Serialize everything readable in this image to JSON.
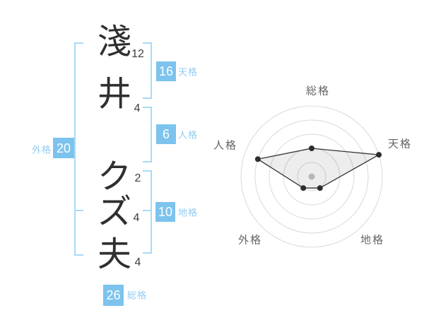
{
  "name_diagram": {
    "characters": [
      {
        "char": "淺",
        "strokes": "12"
      },
      {
        "char": "井",
        "strokes": "4"
      },
      {
        "char": "ク",
        "strokes": "2"
      },
      {
        "char": "ズ",
        "strokes": "4"
      },
      {
        "char": "夫",
        "strokes": "4"
      }
    ],
    "scores": {
      "tenkaku": {
        "value": "16",
        "label": "天格"
      },
      "jinkaku": {
        "value": "6",
        "label": "人格"
      },
      "chikaku": {
        "value": "10",
        "label": "地格"
      },
      "gaikaku": {
        "value": "20",
        "label": "外格"
      },
      "soukaku": {
        "value": "26",
        "label": "総格"
      }
    }
  },
  "chart_data": {
    "type": "radar",
    "axes": [
      "総格",
      "天格",
      "地格",
      "外格",
      "人格"
    ],
    "values": [
      40,
      100,
      20,
      20,
      80
    ],
    "max": 100,
    "ring_values": [
      20,
      40,
      60,
      80,
      100
    ],
    "grid": "concentric-circles",
    "title": "",
    "legend": []
  },
  "colors": {
    "accent_box": "#7cc3ee",
    "blue_label": "#92ccf2",
    "bracket": "#a8daf6",
    "ring": "#d9d9d9",
    "polygon_stroke": "#333333",
    "polygon_fill": "rgba(0,0,0,0.07)",
    "vertex_dot": "#2d2d2d",
    "center_dot": "#c5c5c5"
  }
}
